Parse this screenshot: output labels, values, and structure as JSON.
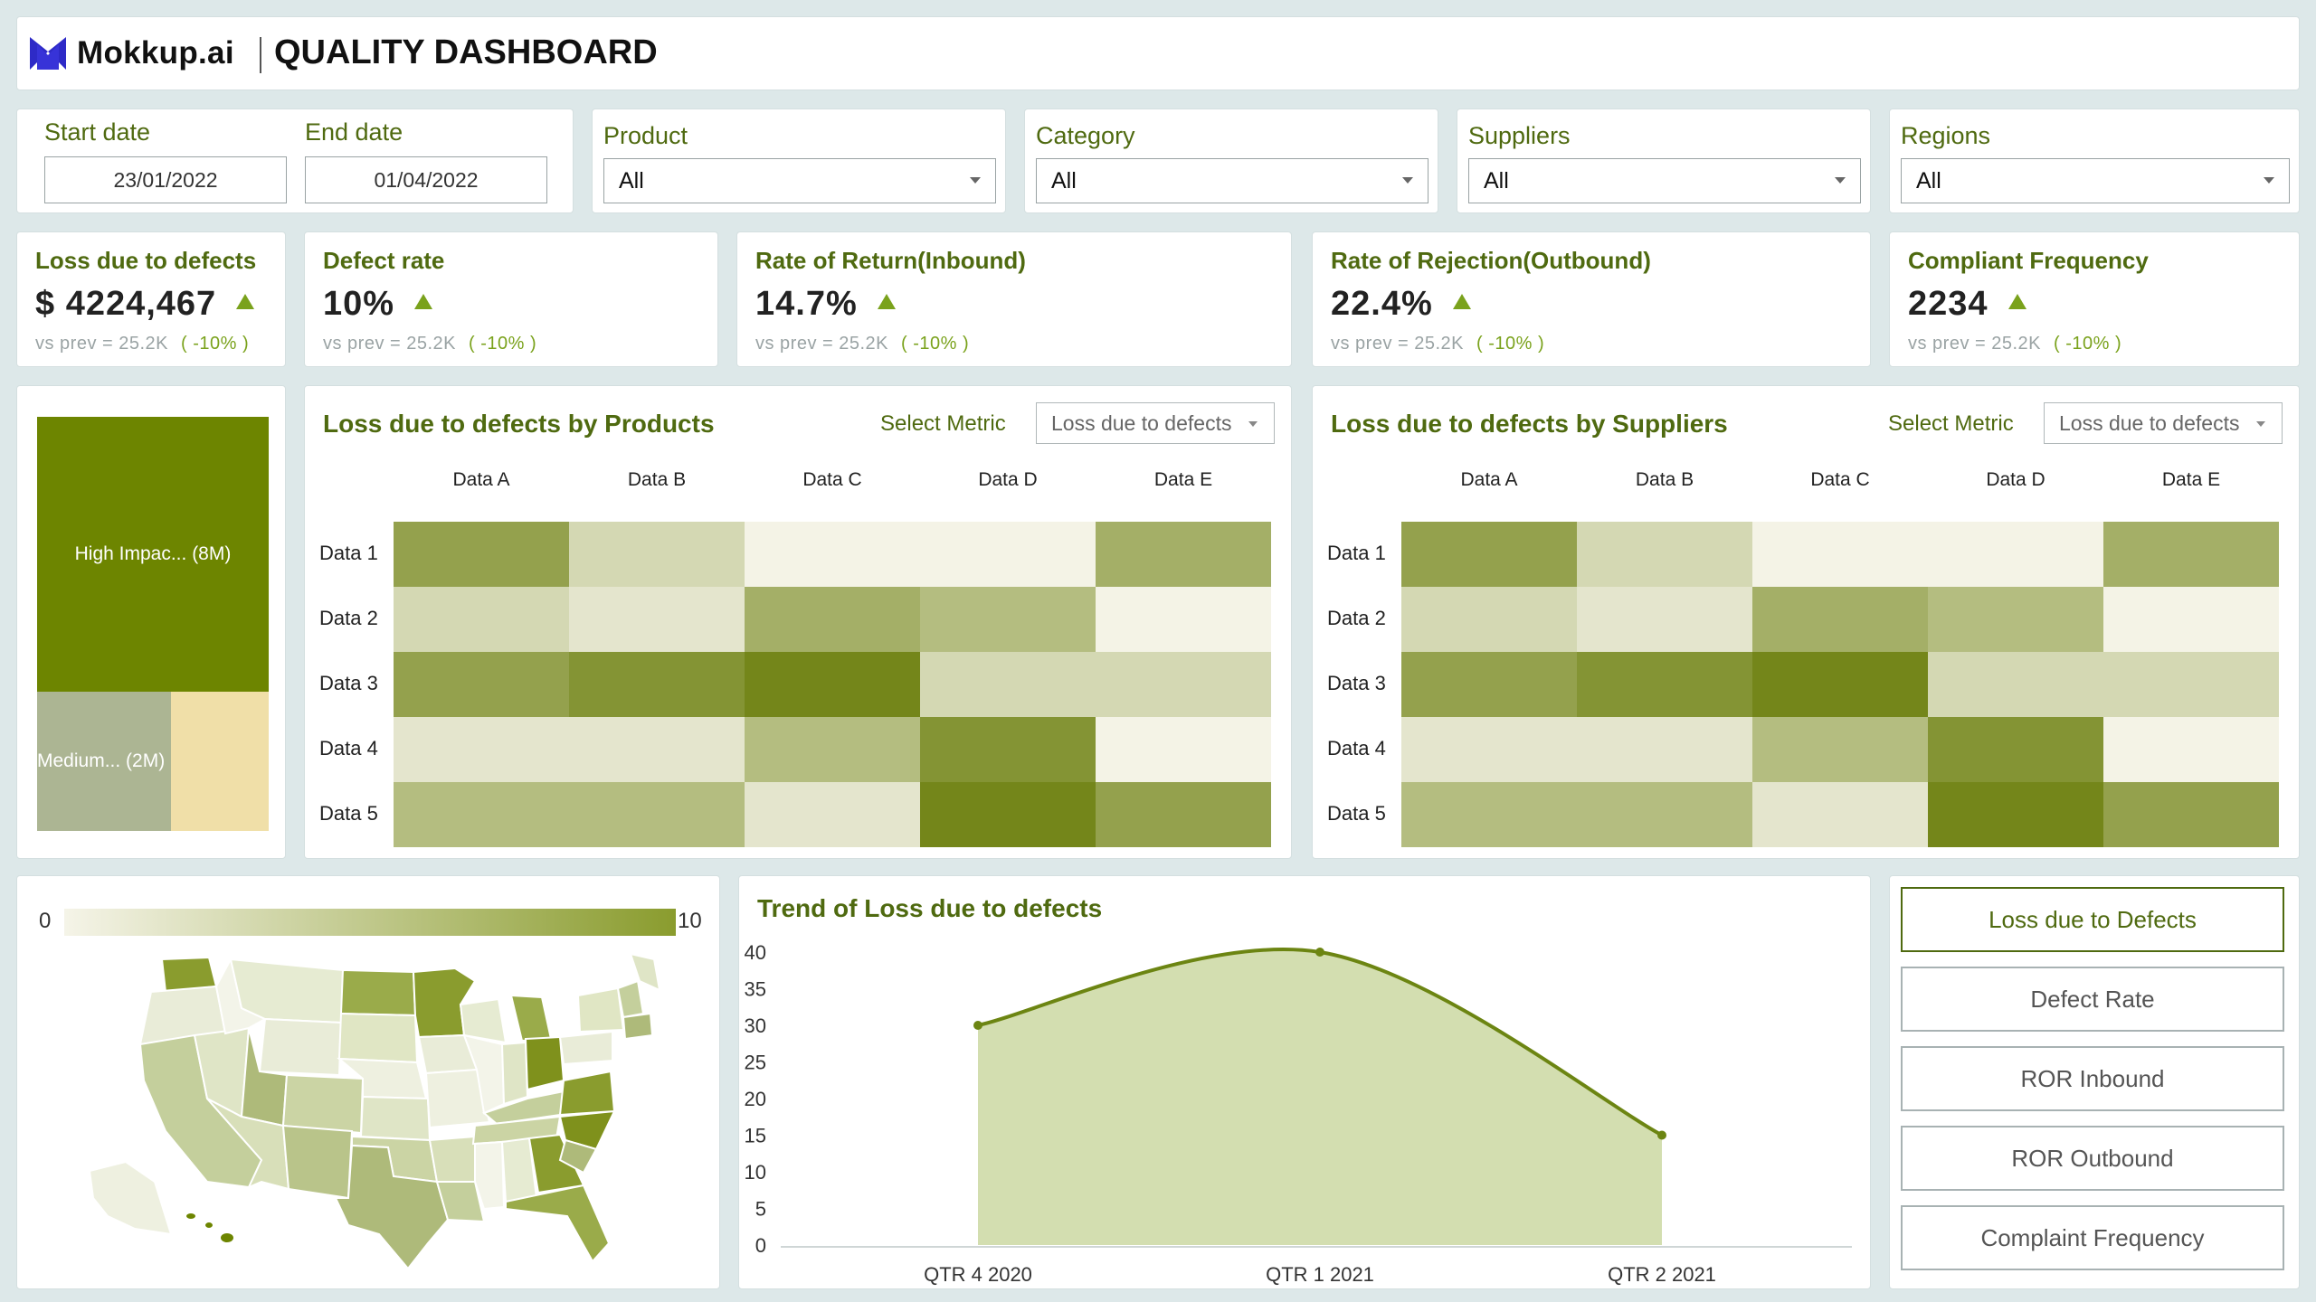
{
  "header": {
    "logo_text": "Mokkup.ai",
    "title": "QUALITY DASHBOARD"
  },
  "filters": {
    "start_label": "Start date",
    "start_value": "23/01/2022",
    "end_label": "End date",
    "end_value": "01/04/2022",
    "product_label": "Product",
    "product_value": "All",
    "category_label": "Category",
    "category_value": "All",
    "suppliers_label": "Suppliers",
    "suppliers_value": "All",
    "regions_label": "Regions",
    "regions_value": "All"
  },
  "kpis": [
    {
      "title": "Loss due to defects",
      "value": "$ 4224,467",
      "prev": "vs prev =  25.2K",
      "change": "( -10% )"
    },
    {
      "title": "Defect rate",
      "value": "10%",
      "prev": "vs prev =  25.2K",
      "change": "( -10% )"
    },
    {
      "title": "Rate of Return(Inbound)",
      "value": "14.7%",
      "prev": "vs prev =  25.2K",
      "change": "( -10% )"
    },
    {
      "title": "Rate of Rejection(Outbound)",
      "value": "22.4%",
      "prev": "vs prev =  25.2K",
      "change": "( -10% )"
    },
    {
      "title": "Compliant Frequency",
      "value": "2234",
      "prev": "vs prev =  25.2K",
      "change": "( -10% )"
    }
  ],
  "treemap": {
    "high_label": "High Impac... (8M)",
    "medium_label": "Medium... (2M)",
    "high_value": 8,
    "medium_value": 2,
    "low_value": 1.3
  },
  "heatmaps": [
    {
      "title": "Loss due to defects by Products",
      "select_label": "Select Metric",
      "select_value": "Loss due to defects",
      "columns": [
        "Data A",
        "Data B",
        "Data C",
        "Data D",
        "Data E"
      ],
      "rows": [
        "Data 1",
        "Data 2",
        "Data 3",
        "Data 4",
        "Data 5"
      ],
      "values": [
        [
          7,
          3,
          1,
          1,
          6
        ],
        [
          3,
          2,
          6,
          5,
          1
        ],
        [
          7,
          8,
          9,
          3,
          3
        ],
        [
          2,
          2,
          5,
          8,
          1
        ],
        [
          5,
          5,
          2,
          9,
          7
        ]
      ]
    },
    {
      "title": "Loss due to defects by Suppliers",
      "select_label": "Select Metric",
      "select_value": "Loss due to defects",
      "columns": [
        "Data A",
        "Data B",
        "Data C",
        "Data D",
        "Data E"
      ],
      "rows": [
        "Data 1",
        "Data 2",
        "Data 3",
        "Data 4",
        "Data 5"
      ],
      "values": [
        [
          7,
          3,
          1,
          1,
          6
        ],
        [
          3,
          2,
          6,
          5,
          1
        ],
        [
          7,
          8,
          9,
          3,
          3
        ],
        [
          2,
          2,
          5,
          8,
          1
        ],
        [
          5,
          5,
          2,
          9,
          7
        ]
      ]
    }
  ],
  "map": {
    "scale_min": "0",
    "scale_max": "10",
    "colors": {
      "low": "#f4f3e6",
      "high": "#8a9c2e"
    }
  },
  "chart_data": {
    "type": "area",
    "title": "Trend of Loss due to defects",
    "categories": [
      "QTR 4 2020",
      "QTR 1 2021",
      "QTR 2 2021"
    ],
    "values": [
      30,
      40,
      15
    ],
    "ylim": [
      0,
      40
    ],
    "yticks": [
      0,
      5,
      10,
      15,
      20,
      25,
      30,
      35,
      40
    ],
    "grid": false
  },
  "metric_buttons": [
    "Loss due to Defects",
    "Defect Rate",
    "ROR Inbound",
    "ROR Outbound",
    "Complaint Frequency"
  ],
  "colors": {
    "accent": "#4f6a10",
    "positive": "#7aa21c",
    "heat_low": "#f4f3e6",
    "heat_high": "#74861a",
    "area_fill": "#d3deb0",
    "line": "#6c8512"
  }
}
